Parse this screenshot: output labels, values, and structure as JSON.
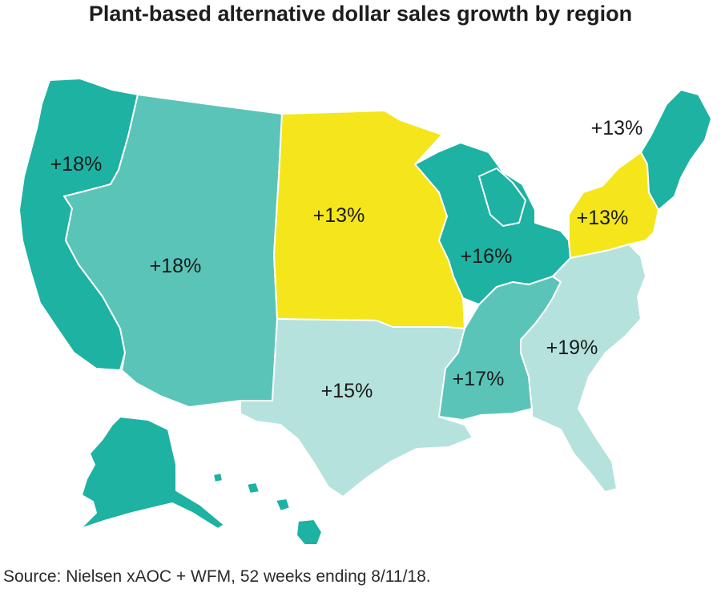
{
  "title": "Plant-based alternative dollar sales growth by region",
  "source": "Source: Nielsen xAOC + WFM, 52 weeks ending 8/11/18.",
  "colors": {
    "dark_teal": "#1db2a2",
    "mid_teal": "#5ac4b8",
    "light_teal": "#b5e2dd",
    "yellow": "#f4e61a",
    "border": "#ffffff"
  },
  "regions": {
    "pacific": {
      "label": "+18%",
      "color": "#1db2a2"
    },
    "mountain": {
      "label": "+18%",
      "color": "#5ac4b8"
    },
    "west_north_central": {
      "label": "+13%",
      "color": "#f4e61a"
    },
    "east_north_central": {
      "label": "+16%",
      "color": "#1db2a2"
    },
    "west_south_central": {
      "label": "+15%",
      "color": "#b5e2dd"
    },
    "east_south_central": {
      "label": "+17%",
      "color": "#5ac4b8"
    },
    "south_atlantic": {
      "label": "+19%",
      "color": "#b5e2dd"
    },
    "middle_atlantic": {
      "label": "+13%",
      "color": "#f4e61a"
    },
    "new_england": {
      "label": "+13%",
      "color": "#1db2a2"
    }
  }
}
